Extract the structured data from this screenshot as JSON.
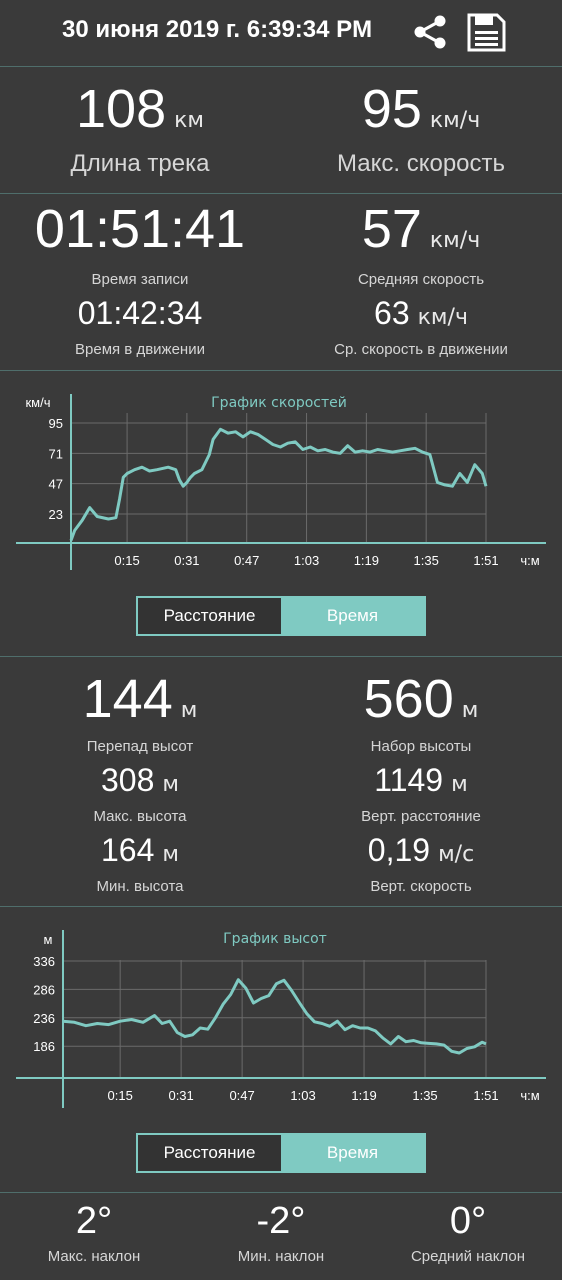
{
  "header": {
    "title": "30 июня 2019 г. 6:39:34 PM",
    "icons": [
      "share-icon",
      "save-icon"
    ]
  },
  "stats_top": {
    "distance": {
      "value": "108",
      "unit": "км",
      "label": "Длина трека"
    },
    "max_speed": {
      "value": "95",
      "unit": "км/ч",
      "label": "Макс. скорость"
    },
    "record_time": {
      "value": "01:51:41",
      "label": "Время записи"
    },
    "avg_speed": {
      "value": "57",
      "unit": "км/ч",
      "label": "Средняя скорость"
    },
    "moving_time": {
      "value": "01:42:34",
      "label": "Время в движении"
    },
    "avg_moving_speed": {
      "value": "63",
      "unit": "км/ч",
      "label": "Ср. скорость в движении"
    }
  },
  "speed_chart": {
    "title": "График скоростей",
    "ylabel": "км/ч",
    "xlabel": "ч:м",
    "y_ticks": [
      "95",
      "71",
      "47",
      "23"
    ],
    "x_ticks": [
      "0:15",
      "0:31",
      "0:47",
      "1:03",
      "1:19",
      "1:35",
      "1:51"
    ]
  },
  "toggle1": {
    "left": "Расстояние",
    "right": "Время"
  },
  "stats_alt": {
    "elev_diff": {
      "value": "144",
      "unit": "м",
      "label": "Перепад высот"
    },
    "elev_gain": {
      "value": "560",
      "unit": "м",
      "label": "Набор высоты"
    },
    "max_alt": {
      "value": "308",
      "unit": "м",
      "label": "Макс. высота"
    },
    "vert_dist": {
      "value": "1149",
      "unit": "м",
      "label": "Верт. расстояние"
    },
    "min_alt": {
      "value": "164",
      "unit": "м",
      "label": "Мин. высота"
    },
    "vert_speed": {
      "value": "0,19",
      "unit": "м/с",
      "label": "Верт. скорость"
    }
  },
  "alt_chart": {
    "title": "График высот",
    "ylabel": "м",
    "xlabel": "ч:м",
    "y_ticks": [
      "336",
      "286",
      "236",
      "186"
    ],
    "x_ticks": [
      "0:15",
      "0:31",
      "0:47",
      "1:03",
      "1:19",
      "1:35",
      "1:51"
    ]
  },
  "toggle2": {
    "left": "Расстояние",
    "right": "Время"
  },
  "slopes": {
    "max": {
      "value": "2°",
      "label": "Макс. наклон"
    },
    "min": {
      "value": "-2°",
      "label": "Мин. наклон"
    },
    "avg": {
      "value": "0°",
      "label": "Средний наклон"
    }
  },
  "chart_data": [
    {
      "type": "line",
      "title": "График скоростей",
      "xlabel": "ч:м",
      "ylabel": "км/ч",
      "xlim": [
        0,
        111
      ],
      "ylim": [
        0,
        95
      ],
      "x": [
        0,
        1,
        3,
        5,
        7,
        10,
        12,
        13,
        14,
        15,
        17,
        19,
        21,
        23,
        26,
        28,
        29,
        30,
        31,
        32,
        33,
        35,
        37,
        38,
        40,
        42,
        44,
        46,
        48,
        50,
        52,
        54,
        56,
        58,
        60,
        62,
        64,
        66,
        68,
        70,
        72,
        74,
        76,
        78,
        80,
        82,
        84,
        86,
        88,
        90,
        92,
        94,
        96,
        98,
        100,
        102,
        104,
        106,
        108,
        110,
        111
      ],
      "series": [
        {
          "values": [
            2,
            10,
            18,
            28,
            21,
            19,
            20,
            35,
            52,
            55,
            58,
            60,
            57,
            58,
            60,
            58,
            50,
            45,
            48,
            52,
            55,
            58,
            70,
            82,
            90,
            87,
            88,
            84,
            88,
            86,
            82,
            78,
            76,
            79,
            80,
            74,
            76,
            73,
            74,
            72,
            71,
            77,
            72,
            73,
            72,
            74,
            73,
            72,
            73,
            74,
            75,
            72,
            70,
            48,
            46,
            45,
            55,
            48,
            62,
            55,
            45
          ]
        }
      ]
    },
    {
      "type": "line",
      "title": "График высот",
      "xlabel": "ч:м",
      "ylabel": "м",
      "xlim": [
        0,
        111
      ],
      "ylim": [
        130,
        336
      ],
      "x": [
        0,
        3,
        6,
        9,
        12,
        15,
        18,
        21,
        24,
        26,
        28,
        30,
        32,
        34,
        36,
        38,
        40,
        42,
        44,
        46,
        48,
        50,
        52,
        54,
        56,
        58,
        60,
        62,
        64,
        66,
        68,
        70,
        72,
        74,
        76,
        78,
        80,
        82,
        84,
        86,
        88,
        90,
        92,
        94,
        96,
        98,
        100,
        102,
        104,
        106,
        108,
        110,
        111
      ],
      "series": [
        {
          "values": [
            230,
            228,
            222,
            226,
            224,
            230,
            233,
            228,
            240,
            226,
            230,
            210,
            203,
            206,
            218,
            216,
            236,
            260,
            277,
            303,
            288,
            262,
            270,
            275,
            296,
            302,
            284,
            263,
            243,
            229,
            226,
            221,
            230,
            215,
            222,
            218,
            218,
            213,
            200,
            190,
            203,
            194,
            196,
            192,
            191,
            190,
            188,
            177,
            174,
            182,
            185,
            193,
            190
          ]
        }
      ]
    }
  ]
}
